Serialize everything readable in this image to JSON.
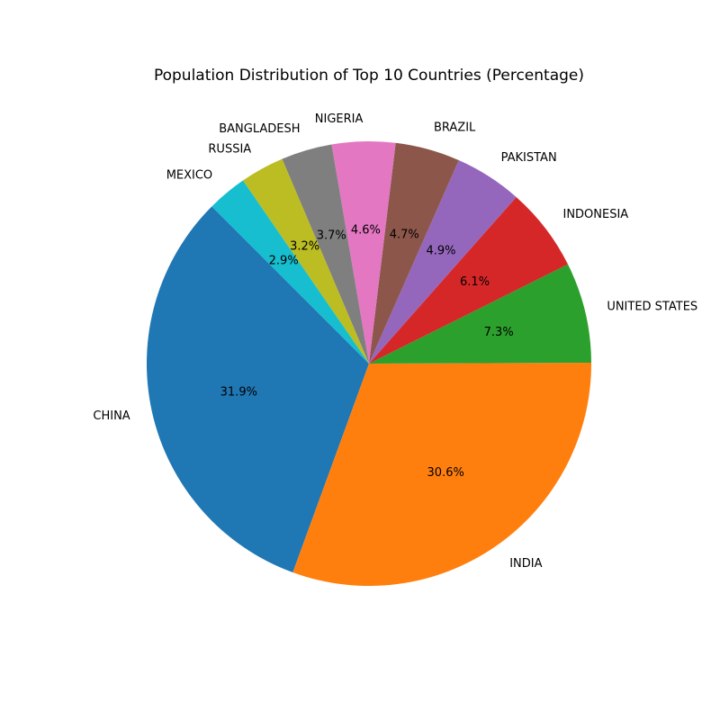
{
  "chart_data": {
    "type": "pie",
    "title": "Population Distribution of Top 10 Countries (Percentage)",
    "start_angle_deg": 135,
    "direction": "counterclockwise",
    "slices": [
      {
        "label": "CHINA",
        "value": 31.9,
        "pct_label": "31.9%",
        "color": "#1f77b4"
      },
      {
        "label": "INDIA",
        "value": 30.6,
        "pct_label": "30.6%",
        "color": "#ff7f0e"
      },
      {
        "label": "UNITED STATES",
        "value": 7.3,
        "pct_label": "7.3%",
        "color": "#2ca02c"
      },
      {
        "label": "INDONESIA",
        "value": 6.1,
        "pct_label": "6.1%",
        "color": "#d62728"
      },
      {
        "label": "PAKISTAN",
        "value": 4.9,
        "pct_label": "4.9%",
        "color": "#9467bd"
      },
      {
        "label": "BRAZIL",
        "value": 4.7,
        "pct_label": "4.7%",
        "color": "#8c564b"
      },
      {
        "label": "NIGERIA",
        "value": 4.6,
        "pct_label": "4.6%",
        "color": "#e377c2"
      },
      {
        "label": "BANGLADESH",
        "value": 3.7,
        "pct_label": "3.7%",
        "color": "#7f7f7f"
      },
      {
        "label": "RUSSIA",
        "value": 3.2,
        "pct_label": "3.2%",
        "color": "#bcbd22"
      },
      {
        "label": "MEXICO",
        "value": 2.9,
        "pct_label": "2.9%",
        "color": "#17becf"
      }
    ]
  }
}
